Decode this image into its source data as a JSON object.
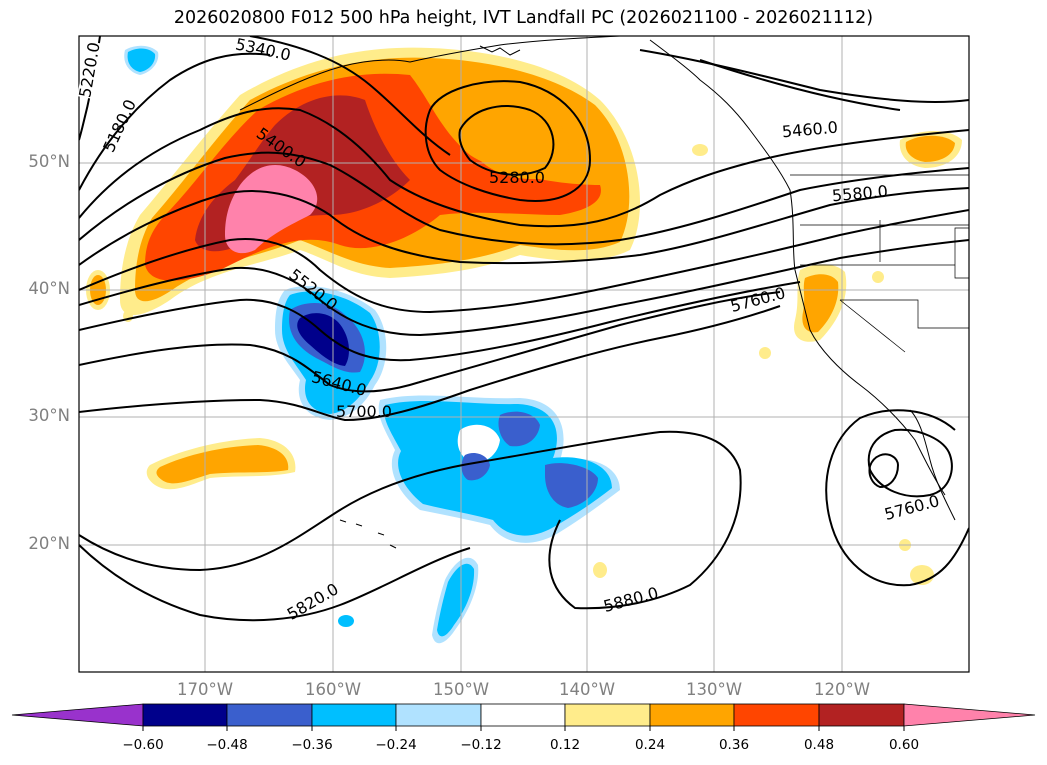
{
  "title": "2026020800 F012 500 hPa height, IVT Landfall PC (2026021100 - 2026021112)",
  "lat_labels": [
    "50°N",
    "40°N",
    "30°N",
    "20°N"
  ],
  "lon_labels": [
    "170°W",
    "160°W",
    "150°W",
    "140°W",
    "130°W",
    "120°W"
  ],
  "contour_labels": [
    "5220.0",
    "5180.0",
    "5340.0",
    "5400.0",
    "5280.0",
    "5460.0",
    "5580.0",
    "5520.0",
    "5640.0",
    "5700.0",
    "5760.0",
    "5760.0",
    "5820.0",
    "5880.0"
  ],
  "colorbar": {
    "ticks": [
      "−0.60",
      "−0.48",
      "−0.36",
      "−0.24",
      "−0.12",
      "0.12",
      "0.24",
      "0.36",
      "0.48",
      "0.60"
    ],
    "colors": [
      "#9932cc",
      "#00008b",
      "#3a5fcd",
      "#00bfff",
      "#b0e2ff",
      "#ffffff",
      "#ffec8b",
      "#ffa500",
      "#ff4500",
      "#b22222",
      "#ff82ab"
    ]
  }
}
